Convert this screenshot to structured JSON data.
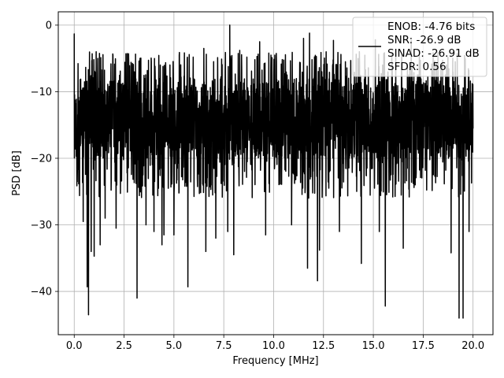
{
  "chart_data": {
    "type": "line",
    "title": "",
    "xlabel": "Frequency [MHz]",
    "ylabel": "PSD [dB]",
    "xlim": [
      -0.8,
      21.0
    ],
    "ylim": [
      -46.5,
      2.0
    ],
    "x_ticks": [
      0.0,
      2.5,
      5.0,
      7.5,
      10.0,
      12.5,
      15.0,
      17.5,
      20.0
    ],
    "x_tick_labels": [
      "0.0",
      "2.5",
      "5.0",
      "7.5",
      "10.0",
      "12.5",
      "15.0",
      "17.5",
      "20.0"
    ],
    "y_ticks": [
      0,
      -10,
      -20,
      -30,
      -40
    ],
    "y_tick_labels": [
      "0",
      "−10",
      "−20",
      "−30",
      "−40"
    ],
    "grid": true,
    "legend_position": "upper-right",
    "legend": [
      {
        "label": "ENOB: -4.76 bits",
        "line": false
      },
      {
        "label": "SNR: -26.9 dB",
        "line": true,
        "color": "#000000"
      },
      {
        "label": "SINAD: -26.91 dB",
        "line": false
      },
      {
        "label": "SFDR: 0.56",
        "line": false
      }
    ],
    "series": [
      {
        "color": "#000000",
        "x_range": [
          0.0,
          20.0
        ],
        "noise_band_upper": -8.0,
        "noise_band_lower": -20.0,
        "dips": [
          {
            "x": 0.15,
            "y": -23.5
          },
          {
            "x": 0.45,
            "y": -29.5
          },
          {
            "x": 0.65,
            "y": -39.3
          },
          {
            "x": 0.72,
            "y": -43.5
          },
          {
            "x": 0.85,
            "y": -34.0
          },
          {
            "x": 1.0,
            "y": -34.7
          },
          {
            "x": 1.3,
            "y": -33.0
          },
          {
            "x": 1.55,
            "y": -29.0
          },
          {
            "x": 2.1,
            "y": -30.5
          },
          {
            "x": 3.15,
            "y": -41.0
          },
          {
            "x": 3.6,
            "y": -30.0
          },
          {
            "x": 4.0,
            "y": -31.0
          },
          {
            "x": 4.4,
            "y": -33.0
          },
          {
            "x": 4.5,
            "y": -31.5
          },
          {
            "x": 5.0,
            "y": -31.5
          },
          {
            "x": 5.7,
            "y": -39.3
          },
          {
            "x": 6.6,
            "y": -34.0
          },
          {
            "x": 7.1,
            "y": -32.0
          },
          {
            "x": 7.7,
            "y": -31.0
          },
          {
            "x": 8.0,
            "y": -34.5
          },
          {
            "x": 9.6,
            "y": -31.5
          },
          {
            "x": 10.9,
            "y": -30.0
          },
          {
            "x": 11.7,
            "y": -36.5
          },
          {
            "x": 12.2,
            "y": -38.4
          },
          {
            "x": 12.3,
            "y": -33.8
          },
          {
            "x": 13.3,
            "y": -31.0
          },
          {
            "x": 14.4,
            "y": -35.8
          },
          {
            "x": 15.3,
            "y": -31.0
          },
          {
            "x": 15.6,
            "y": -42.2
          },
          {
            "x": 16.5,
            "y": -33.5
          },
          {
            "x": 18.9,
            "y": -34.2
          },
          {
            "x": 19.3,
            "y": -44.0
          },
          {
            "x": 19.5,
            "y": -44.0
          },
          {
            "x": 19.8,
            "y": -31.0
          }
        ],
        "peaks": [
          {
            "x": 0.0,
            "y": -1.3
          },
          {
            "x": 1.1,
            "y": -4.0
          },
          {
            "x": 3.3,
            "y": -5.0
          },
          {
            "x": 6.5,
            "y": -3.5
          },
          {
            "x": 7.8,
            "y": 0.0
          },
          {
            "x": 8.3,
            "y": -3.8
          },
          {
            "x": 9.3,
            "y": -2.5
          },
          {
            "x": 11.5,
            "y": -2.0
          },
          {
            "x": 11.8,
            "y": -1.2
          },
          {
            "x": 13.0,
            "y": -2.3
          },
          {
            "x": 14.3,
            "y": -4.0
          },
          {
            "x": 15.1,
            "y": -2.2
          },
          {
            "x": 16.9,
            "y": -2.3
          }
        ]
      }
    ]
  }
}
